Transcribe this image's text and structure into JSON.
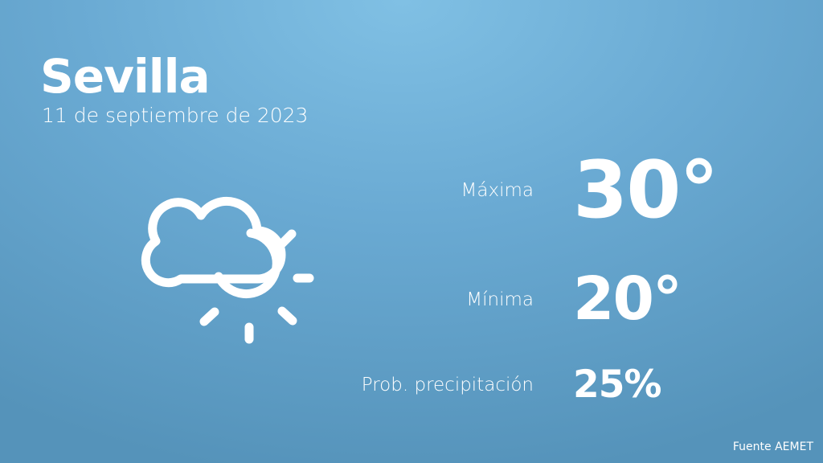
{
  "city": "Sevilla",
  "date": "11 de septiembre de 2023",
  "weather_icon": "cloud-sun-icon",
  "stats": {
    "max": {
      "label": "Máxima",
      "value": "30°"
    },
    "min": {
      "label": "Mínima",
      "value": "20°"
    },
    "precip": {
      "label": "Prob. precipitación",
      "value": "25%"
    }
  },
  "source": "Fuente AEMET",
  "colors": {
    "background_top": "#80c0e4",
    "background_bottom": "#5593ba",
    "text": "#ffffff"
  }
}
